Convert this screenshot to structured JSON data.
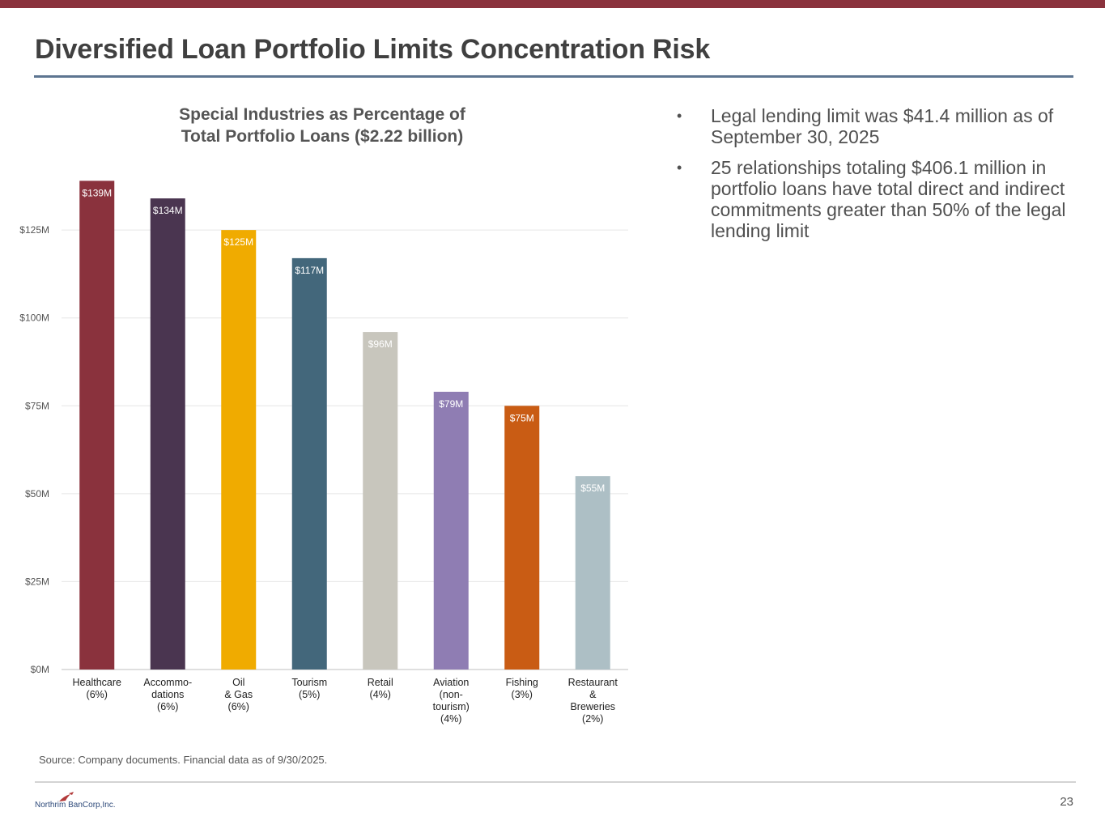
{
  "slide": {
    "title": "Diversified Loan Portfolio Limits Concentration Risk",
    "bullets": [
      "Legal lending limit was $41.4 million as of September 30, 2025",
      "25 relationships totaling $406.1 million in portfolio loans have total direct and indirect commitments greater than 50% of the legal lending limit"
    ],
    "bullet_symbol": "•",
    "source": "Source: Company documents. Financial data as of 9/30/2025.",
    "page_number": "23",
    "logo_text": "Northrim BanCorp,Inc."
  },
  "colors": {
    "top_bar": "#8a323d",
    "title_rule": "#5d7591",
    "gridline": "#e6e6e6"
  },
  "chart_data": {
    "type": "bar",
    "title": [
      "Special Industries as Percentage of",
      "Total Portfolio Loans ($2.22 billion)"
    ],
    "categories": [
      [
        "Healthcare",
        "(6%)"
      ],
      [
        "Accommo-",
        "dations",
        "(6%)"
      ],
      [
        "Oil",
        "& Gas",
        "(6%)"
      ],
      [
        "Tourism",
        "(5%)"
      ],
      [
        "Retail",
        "(4%)"
      ],
      [
        "Aviation",
        "(non-",
        "tourism)",
        "(4%)"
      ],
      [
        "Fishing",
        "(3%)"
      ],
      [
        "Restaurant",
        "&",
        "Breweries",
        "(2%)"
      ]
    ],
    "values": [
      139,
      134,
      125,
      117,
      96,
      79,
      75,
      55
    ],
    "data_labels": [
      "$139M",
      "$134M",
      "$125M",
      "$117M",
      "$96M",
      "$79M",
      "$75M",
      "$55M"
    ],
    "bar_colors": [
      "#8a323d",
      "#4a3550",
      "#f0ab00",
      "#43677b",
      "#c8c6bd",
      "#8f7db3",
      "#c95c14",
      "#adbfc5"
    ],
    "yticks": [
      0,
      25,
      50,
      75,
      100,
      125
    ],
    "ytick_labels": [
      "$0M",
      "$25M",
      "$50M",
      "$75M",
      "$100M",
      "$125M"
    ],
    "ylim": [
      0,
      140
    ],
    "xlabel": "",
    "ylabel": "",
    "grid": true,
    "legend": "none"
  }
}
